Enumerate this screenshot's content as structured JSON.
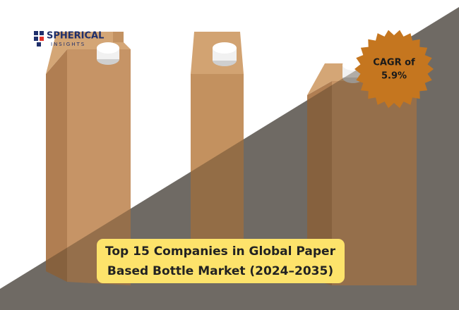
{
  "logo": {
    "name": "SPHERICAL",
    "tagline": "INSIGHTS"
  },
  "badge": {
    "line1": "CAGR of",
    "line2": "5.9%"
  },
  "title": {
    "line1": "Top 15 Companies in Global Paper",
    "line2": "Based Bottle Market (2024–2035)"
  }
}
